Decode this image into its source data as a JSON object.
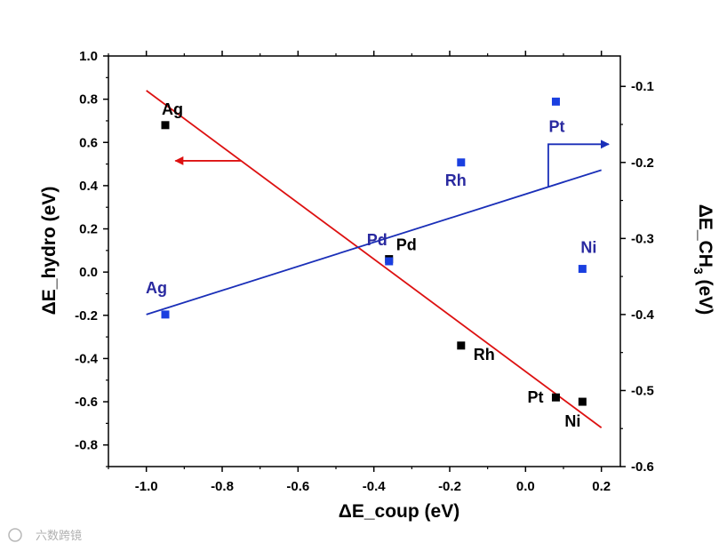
{
  "chart_data": {
    "type": "scatter",
    "xlabel": "ΔE_coup (eV)",
    "ylabel_left": "ΔE_hydro (eV)",
    "ylabel_right": {
      "main": "ΔE_CH",
      "subscript": "3",
      "unit": " (eV)"
    },
    "xlim": [
      -1.1,
      0.25
    ],
    "ylim_left": [
      -0.9,
      1.0
    ],
    "ylim_right": [
      -0.6,
      -0.06
    ],
    "x_ticks": [
      "-1.0",
      "-0.8",
      "-0.6",
      "-0.4",
      "-0.2",
      "0.0",
      "0.2"
    ],
    "x_tick_values": [
      -1.0,
      -0.8,
      -0.6,
      -0.4,
      -0.2,
      0.0,
      0.2
    ],
    "y_left_ticks": [
      "-0.8",
      "-0.6",
      "-0.4",
      "-0.2",
      "0.0",
      "0.2",
      "0.4",
      "0.6",
      "0.8",
      "1.0"
    ],
    "y_left_tick_values": [
      -0.8,
      -0.6,
      -0.4,
      -0.2,
      0.0,
      0.2,
      0.4,
      0.6,
      0.8,
      1.0
    ],
    "y_right_ticks": [
      "-0.6",
      "-0.5",
      "-0.4",
      "-0.3",
      "-0.2",
      "-0.1"
    ],
    "y_right_tick_values": [
      -0.6,
      -0.5,
      -0.4,
      -0.3,
      -0.2,
      -0.1
    ],
    "series": [
      {
        "name": "ΔE_hydro",
        "axis": "left",
        "color": "#000000",
        "line_color": "#dd1111",
        "points": [
          {
            "label": "Ag",
            "x": -0.95,
            "y": 0.68
          },
          {
            "label": "Pd",
            "x": -0.36,
            "y": 0.06
          },
          {
            "label": "Rh",
            "x": -0.17,
            "y": -0.34
          },
          {
            "label": "Pt",
            "x": 0.08,
            "y": -0.58
          },
          {
            "label": "Ni",
            "x": 0.15,
            "y": -0.6
          }
        ],
        "fit": {
          "x": [
            -1.0,
            0.2
          ],
          "y": [
            0.84,
            -0.72
          ]
        },
        "arrow_direction": "left"
      },
      {
        "name": "ΔE_CH3",
        "axis": "right",
        "color": "#1a3fe0",
        "label_color": "#2a2aa0",
        "line_color": "#1a2fb8",
        "points": [
          {
            "label": "Ag",
            "x": -0.95,
            "y": -0.4
          },
          {
            "label": "Pd",
            "x": -0.36,
            "y": -0.33
          },
          {
            "label": "Rh",
            "x": -0.17,
            "y": -0.2
          },
          {
            "label": "Pt",
            "x": 0.08,
            "y": -0.12
          },
          {
            "label": "Ni",
            "x": 0.15,
            "y": -0.34
          }
        ],
        "fit": {
          "x": [
            -1.0,
            0.2
          ],
          "y": [
            -0.4,
            -0.21
          ]
        },
        "arrow_direction": "right"
      }
    ]
  },
  "watermark": "六数跨镜"
}
